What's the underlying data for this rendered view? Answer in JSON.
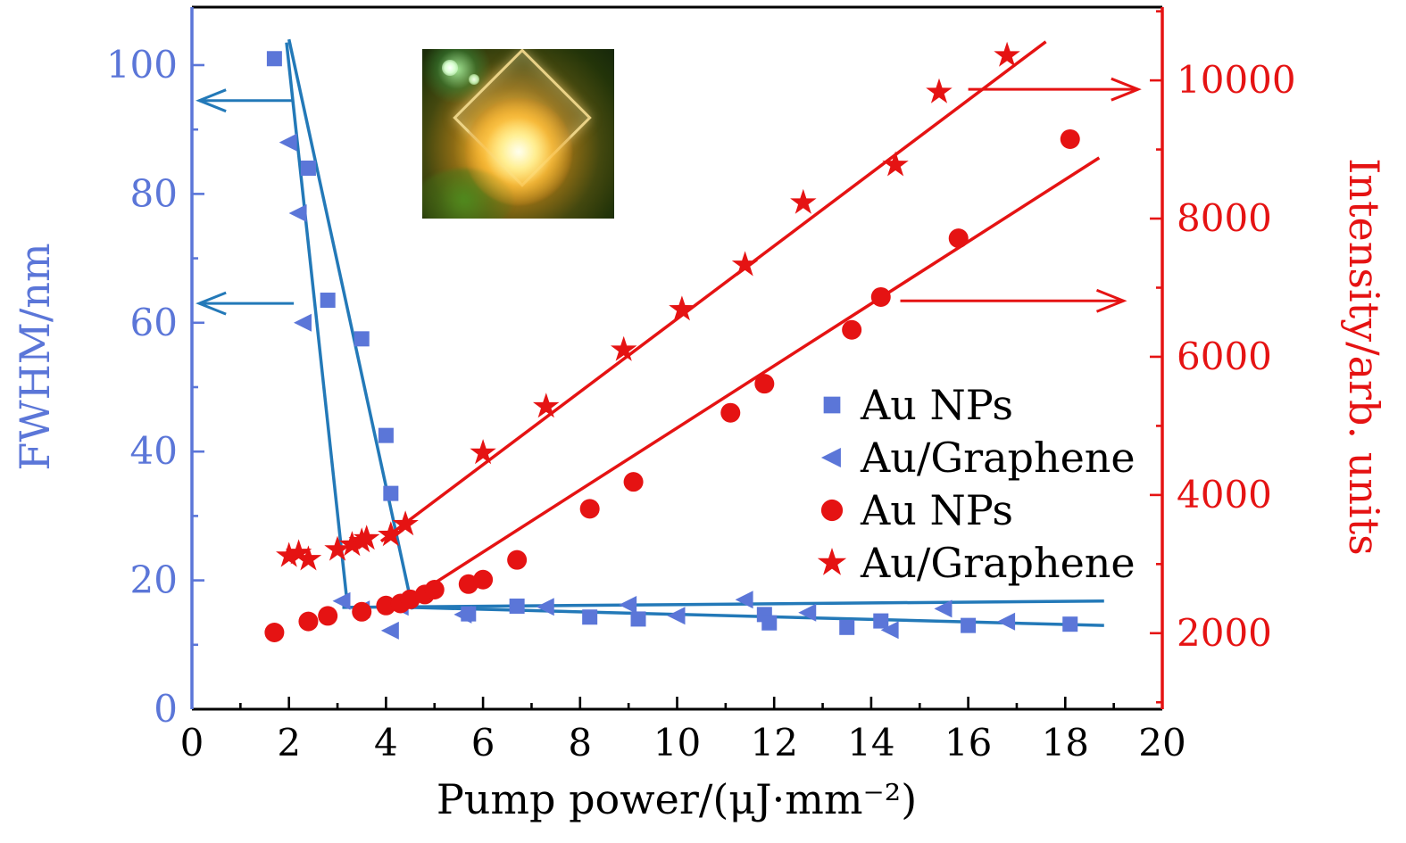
{
  "figure": {
    "background": "#ffffff"
  },
  "inset_photo": {
    "alt": "photograph of sample: glowing emission spot inside a diamond-shaped microplate frame"
  },
  "chart_data": {
    "type": "scatter",
    "title": "",
    "xlabel": "Pump power/(μJ·mm⁻²)",
    "ylabel_left": "FWHM/nm",
    "ylabel_right": "Intensity/arb. units",
    "xlim": [
      0,
      20
    ],
    "ylim_left": [
      0,
      109
    ],
    "ylim_right": [
      900,
      11060
    ],
    "x_ticks": [
      0,
      2,
      4,
      6,
      8,
      10,
      12,
      14,
      16,
      18,
      20
    ],
    "x_minor_step": 1,
    "left_ticks": [
      0,
      20,
      40,
      60,
      80,
      100
    ],
    "left_minor_step": 10,
    "right_ticks": [
      2000,
      4000,
      6000,
      8000,
      10000
    ],
    "right_minor_step": 1000,
    "grid": false,
    "legend_position": "center-right",
    "colors": {
      "blue_marker": "#5b76d8",
      "blue_line": "#2379b8",
      "red": "#e51313",
      "axis_blue": "#5b76d8",
      "black": "#000000",
      "background": "#ffffff"
    },
    "series": [
      {
        "name": "Au NPs",
        "axis": "left",
        "marker": "square",
        "color_key": "blue_marker",
        "points": [
          [
            1.7,
            101
          ],
          [
            2.4,
            84
          ],
          [
            2.8,
            63.5
          ],
          [
            3.5,
            57.5
          ],
          [
            4.0,
            42.5
          ],
          [
            4.1,
            33.5
          ],
          [
            5.7,
            14.8
          ],
          [
            6.7,
            16.0
          ],
          [
            8.2,
            14.3
          ],
          [
            9.2,
            14.0
          ],
          [
            11.8,
            14.7
          ],
          [
            11.9,
            13.4
          ],
          [
            13.5,
            12.7
          ],
          [
            14.2,
            13.7
          ],
          [
            16.0,
            13.0
          ],
          [
            18.1,
            13.2
          ]
        ]
      },
      {
        "name": "Au/Graphene",
        "axis": "left",
        "marker": "triangle-left",
        "color_key": "blue_marker",
        "points": [
          [
            2.0,
            88
          ],
          [
            2.2,
            77
          ],
          [
            2.3,
            60
          ],
          [
            3.1,
            16.8
          ],
          [
            3.5,
            15.5
          ],
          [
            4.1,
            12.2
          ],
          [
            4.3,
            15.9
          ],
          [
            5.6,
            14.7
          ],
          [
            7.3,
            15.9
          ],
          [
            9.0,
            16.2
          ],
          [
            10.0,
            14.5
          ],
          [
            11.4,
            17.0
          ],
          [
            12.7,
            15.0
          ],
          [
            14.4,
            12.3
          ],
          [
            15.5,
            15.6
          ],
          [
            16.8,
            13.6
          ]
        ]
      },
      {
        "name": "Au NPs",
        "axis": "right",
        "marker": "circle",
        "color_key": "red",
        "points": [
          [
            1.7,
            2010
          ],
          [
            2.4,
            2170
          ],
          [
            2.8,
            2250
          ],
          [
            3.5,
            2310
          ],
          [
            4.0,
            2400
          ],
          [
            4.3,
            2430
          ],
          [
            4.5,
            2490
          ],
          [
            4.8,
            2560
          ],
          [
            5.0,
            2630
          ],
          [
            5.7,
            2710
          ],
          [
            6.0,
            2775
          ],
          [
            6.7,
            3060
          ],
          [
            8.2,
            3800
          ],
          [
            9.1,
            4190
          ],
          [
            11.1,
            5190
          ],
          [
            11.8,
            5610
          ],
          [
            13.6,
            6390
          ],
          [
            14.2,
            6865
          ],
          [
            15.8,
            7715
          ],
          [
            18.1,
            9150
          ]
        ]
      },
      {
        "name": "Au/Graphene",
        "axis": "right",
        "marker": "star",
        "color_key": "red",
        "points": [
          [
            2.0,
            3120
          ],
          [
            2.2,
            3160
          ],
          [
            2.4,
            3070
          ],
          [
            3.0,
            3210
          ],
          [
            3.3,
            3280
          ],
          [
            3.5,
            3330
          ],
          [
            3.6,
            3370
          ],
          [
            4.1,
            3420
          ],
          [
            4.4,
            3575
          ],
          [
            6.0,
            4610
          ],
          [
            7.3,
            5280
          ],
          [
            8.9,
            6100
          ],
          [
            10.1,
            6685
          ],
          [
            11.4,
            7330
          ],
          [
            12.6,
            8230
          ],
          [
            14.5,
            8775
          ],
          [
            15.4,
            9830
          ],
          [
            16.8,
            10360
          ]
        ]
      }
    ],
    "trend_lines": [
      {
        "axis": "left",
        "color_key": "blue_line",
        "from": [
          1.95,
          103.5
        ],
        "to": [
          3.2,
          16.5
        ]
      },
      {
        "axis": "left",
        "color_key": "blue_line",
        "from": [
          2.0,
          104.0
        ],
        "to": [
          4.55,
          15.5
        ]
      },
      {
        "axis": "left",
        "color_key": "blue_line",
        "from": [
          3.1,
          15.8
        ],
        "to": [
          18.8,
          16.8
        ]
      },
      {
        "axis": "left",
        "color_key": "blue_line",
        "from": [
          4.5,
          15.8
        ],
        "to": [
          18.8,
          13.0
        ]
      },
      {
        "axis": "right",
        "color_key": "red",
        "from": [
          3.9,
          3330
        ],
        "to": [
          17.6,
          10560
        ]
      },
      {
        "axis": "right",
        "color_key": "red",
        "from": [
          4.5,
          2500
        ],
        "to": [
          18.7,
          8880
        ]
      }
    ],
    "arrows": [
      {
        "axis": "left",
        "color_key": "blue_line",
        "y": 94.5,
        "from_x": 2.1,
        "to_x": 0.15
      },
      {
        "axis": "left",
        "color_key": "blue_line",
        "y": 63.0,
        "from_x": 2.1,
        "to_x": 0.15
      },
      {
        "axis": "right",
        "color_key": "red",
        "y": 9870,
        "from_x": 16.0,
        "to_x": 19.5
      },
      {
        "axis": "right",
        "color_key": "red",
        "y": 6810,
        "from_x": 14.6,
        "to_x": 19.2
      }
    ],
    "legend": {
      "items": [
        {
          "label": "Au NPs",
          "marker": "square",
          "color_key": "blue_marker"
        },
        {
          "label": "Au/Graphene",
          "marker": "triangle-left",
          "color_key": "blue_marker"
        },
        {
          "label": "Au NPs",
          "marker": "circle",
          "color_key": "red"
        },
        {
          "label": "Au/Graphene",
          "marker": "star",
          "color_key": "red"
        }
      ]
    }
  }
}
